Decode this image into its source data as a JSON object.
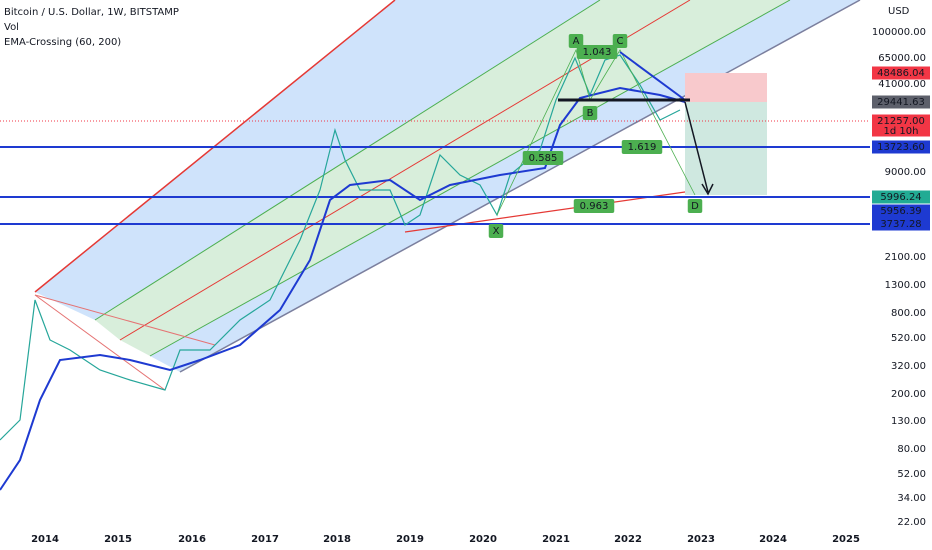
{
  "header": {
    "title": "Bitcoin / U.S. Dollar, 1W, BITSTAMP",
    "volume": "Vol",
    "indicator": "EMA-Crossing (60, 200)"
  },
  "price_axis": {
    "currency": "USD",
    "labels": [
      "100000.00",
      "65000.00",
      "41000.00",
      "9000.00",
      "2100.00",
      "1300.00",
      "800.00",
      "520.00",
      "320.00",
      "200.00",
      "130.00",
      "80.00",
      "52.00",
      "34.00",
      "22.00"
    ]
  },
  "time_axis": [
    "2014",
    "2015",
    "2016",
    "2017",
    "2018",
    "2019",
    "2020",
    "2021",
    "2022",
    "2023",
    "2024",
    "2025"
  ],
  "price_tags": [
    {
      "label": "48486.04"
    },
    {
      "label": "29441.63"
    },
    {
      "label": "21257.00",
      "countdown": "1d 10h"
    },
    {
      "label": "13723.60"
    },
    {
      "label": "5996.24"
    },
    {
      "label": "5956.39"
    },
    {
      "label": "3737.28"
    }
  ],
  "pattern_labels": [
    "A",
    "C",
    "1.043",
    "B",
    "0.585",
    "1.619",
    "0.963",
    "D",
    "X"
  ]
}
